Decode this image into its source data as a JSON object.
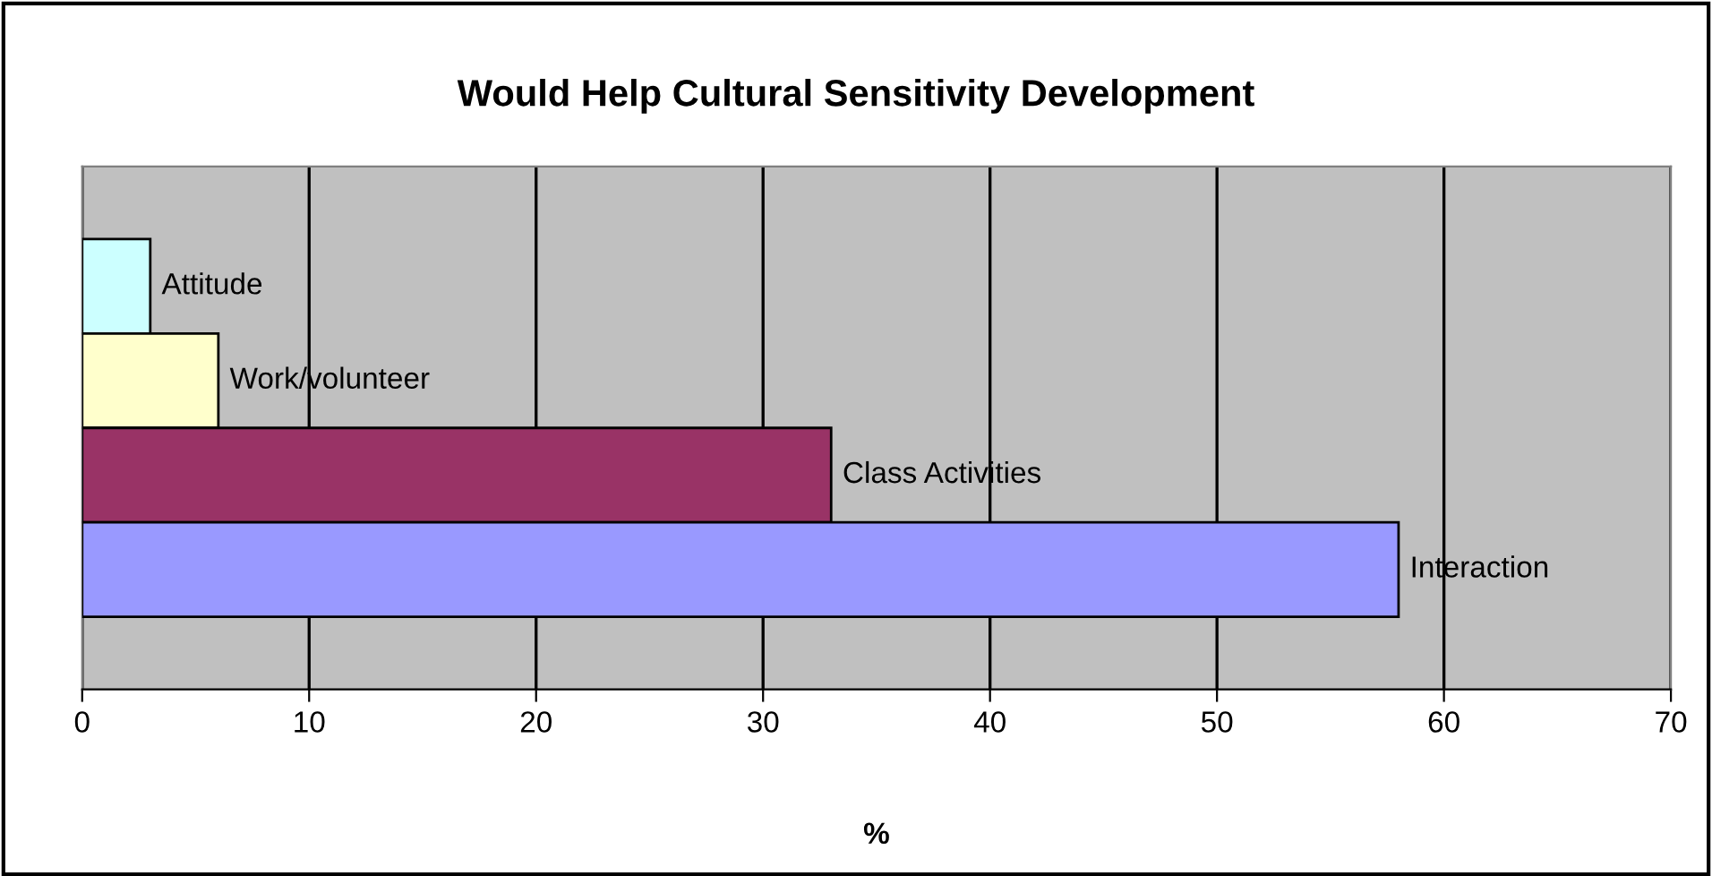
{
  "chart_data": {
    "type": "bar",
    "orientation": "horizontal",
    "title": "Would Help Cultural Sensitivity Development",
    "xlabel": "%",
    "categories": [
      "Attitude",
      "Work/volunteer",
      "Class Activities",
      "Interaction"
    ],
    "values": [
      3,
      6,
      33,
      58
    ],
    "colors": [
      "#ccffff",
      "#ffffcc",
      "#993366",
      "#9999ff"
    ],
    "xlim": [
      0,
      70
    ],
    "xticks": [
      0,
      10,
      20,
      30,
      40,
      50,
      60,
      70
    ],
    "grid": "x",
    "tick_labels": "x"
  }
}
